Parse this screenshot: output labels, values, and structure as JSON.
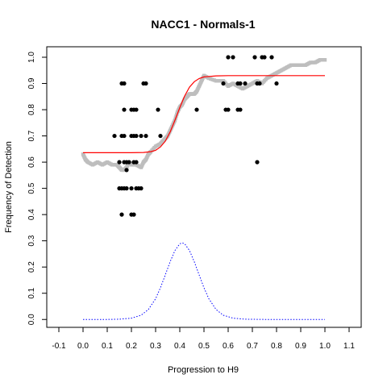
{
  "chart_data": {
    "type": "scatter",
    "title": "NACC1 - Normals-1",
    "xlabel": "Progression to H9",
    "ylabel": "Frequency of Detection",
    "xlim": [
      -0.15,
      1.15
    ],
    "ylim": [
      -0.03,
      1.04
    ],
    "x_ticks": [
      "-0.1",
      "0.0",
      "0.1",
      "0.2",
      "0.3",
      "0.4",
      "0.5",
      "0.6",
      "0.7",
      "0.8",
      "0.9",
      "1.0",
      "1.1"
    ],
    "y_ticks": [
      "0.0",
      "0.1",
      "0.2",
      "0.3",
      "0.4",
      "0.5",
      "0.6",
      "0.7",
      "0.8",
      "0.9",
      "1.0"
    ],
    "grid": false,
    "series": [
      {
        "kind": "points",
        "color": "#000000",
        "points": [
          [
            0.16,
            0.9
          ],
          [
            0.17,
            0.9
          ],
          [
            0.17,
            0.8
          ],
          [
            0.17,
            0.7
          ],
          [
            0.16,
            0.7
          ],
          [
            0.13,
            0.7
          ],
          [
            0.15,
            0.6
          ],
          [
            0.17,
            0.6
          ],
          [
            0.18,
            0.6
          ],
          [
            0.19,
            0.6
          ],
          [
            0.18,
            0.57
          ],
          [
            0.15,
            0.5
          ],
          [
            0.16,
            0.5
          ],
          [
            0.17,
            0.5
          ],
          [
            0.18,
            0.5
          ],
          [
            0.16,
            0.4
          ],
          [
            0.2,
            0.4
          ],
          [
            0.21,
            0.4
          ],
          [
            0.2,
            0.8
          ],
          [
            0.21,
            0.8
          ],
          [
            0.22,
            0.8
          ],
          [
            0.2,
            0.7
          ],
          [
            0.21,
            0.7
          ],
          [
            0.22,
            0.7
          ],
          [
            0.21,
            0.6
          ],
          [
            0.22,
            0.6
          ],
          [
            0.2,
            0.5
          ],
          [
            0.22,
            0.5
          ],
          [
            0.23,
            0.5
          ],
          [
            0.24,
            0.5
          ],
          [
            0.25,
            0.9
          ],
          [
            0.26,
            0.9
          ],
          [
            0.24,
            0.7
          ],
          [
            0.26,
            0.7
          ],
          [
            0.31,
            0.8
          ],
          [
            0.32,
            0.7
          ],
          [
            0.47,
            0.8
          ],
          [
            0.6,
            1.0
          ],
          [
            0.62,
            1.0
          ],
          [
            0.58,
            0.9
          ],
          [
            0.59,
            0.8
          ],
          [
            0.6,
            0.8
          ],
          [
            0.64,
            0.9
          ],
          [
            0.65,
            0.9
          ],
          [
            0.67,
            0.9
          ],
          [
            0.64,
            0.8
          ],
          [
            0.65,
            0.8
          ],
          [
            0.71,
            1.0
          ],
          [
            0.74,
            1.0
          ],
          [
            0.75,
            1.0
          ],
          [
            0.78,
            1.0
          ],
          [
            0.72,
            0.9
          ],
          [
            0.73,
            0.9
          ],
          [
            0.72,
            0.6
          ],
          [
            0.8,
            0.9
          ]
        ]
      },
      {
        "kind": "running-mean",
        "color": "#bebebe",
        "points": [
          [
            0.0,
            0.63
          ],
          [
            0.01,
            0.61
          ],
          [
            0.02,
            0.6
          ],
          [
            0.04,
            0.59
          ],
          [
            0.06,
            0.6
          ],
          [
            0.08,
            0.59
          ],
          [
            0.1,
            0.6
          ],
          [
            0.12,
            0.59
          ],
          [
            0.14,
            0.59
          ],
          [
            0.15,
            0.58
          ],
          [
            0.16,
            0.57
          ],
          [
            0.17,
            0.57
          ],
          [
            0.18,
            0.58
          ],
          [
            0.19,
            0.6
          ],
          [
            0.2,
            0.59
          ],
          [
            0.22,
            0.59
          ],
          [
            0.24,
            0.58
          ],
          [
            0.25,
            0.6
          ],
          [
            0.26,
            0.61
          ],
          [
            0.27,
            0.63
          ],
          [
            0.28,
            0.64
          ],
          [
            0.3,
            0.66
          ],
          [
            0.32,
            0.67
          ],
          [
            0.33,
            0.68
          ],
          [
            0.34,
            0.69
          ],
          [
            0.35,
            0.7
          ],
          [
            0.36,
            0.72
          ],
          [
            0.37,
            0.74
          ],
          [
            0.38,
            0.76
          ],
          [
            0.39,
            0.79
          ],
          [
            0.4,
            0.81
          ],
          [
            0.41,
            0.82
          ],
          [
            0.42,
            0.84
          ],
          [
            0.43,
            0.85
          ],
          [
            0.44,
            0.86
          ],
          [
            0.45,
            0.86
          ],
          [
            0.46,
            0.86
          ],
          [
            0.47,
            0.87
          ],
          [
            0.48,
            0.89
          ],
          [
            0.49,
            0.91
          ],
          [
            0.5,
            0.93
          ],
          [
            0.52,
            0.92
          ],
          [
            0.55,
            0.91
          ],
          [
            0.58,
            0.91
          ],
          [
            0.6,
            0.89
          ],
          [
            0.62,
            0.9
          ],
          [
            0.64,
            0.89
          ],
          [
            0.66,
            0.88
          ],
          [
            0.68,
            0.89
          ],
          [
            0.7,
            0.9
          ],
          [
            0.72,
            0.91
          ],
          [
            0.74,
            0.9
          ],
          [
            0.76,
            0.92
          ],
          [
            0.78,
            0.93
          ],
          [
            0.8,
            0.94
          ],
          [
            0.82,
            0.95
          ],
          [
            0.84,
            0.96
          ],
          [
            0.86,
            0.97
          ],
          [
            0.88,
            0.97
          ],
          [
            0.9,
            0.97
          ],
          [
            0.92,
            0.97
          ],
          [
            0.94,
            0.98
          ],
          [
            0.96,
            0.98
          ],
          [
            0.98,
            0.99
          ],
          [
            1.0,
            0.99
          ]
        ]
      },
      {
        "kind": "fit-curve",
        "color": "#ff0000",
        "points": [
          [
            0.0,
            0.636
          ],
          [
            0.05,
            0.636
          ],
          [
            0.1,
            0.636
          ],
          [
            0.15,
            0.636
          ],
          [
            0.2,
            0.636
          ],
          [
            0.25,
            0.637
          ],
          [
            0.28,
            0.64
          ],
          [
            0.3,
            0.645
          ],
          [
            0.32,
            0.658
          ],
          [
            0.34,
            0.68
          ],
          [
            0.36,
            0.715
          ],
          [
            0.38,
            0.76
          ],
          [
            0.4,
            0.808
          ],
          [
            0.42,
            0.852
          ],
          [
            0.44,
            0.886
          ],
          [
            0.46,
            0.907
          ],
          [
            0.48,
            0.919
          ],
          [
            0.5,
            0.925
          ],
          [
            0.55,
            0.929
          ],
          [
            0.6,
            0.93
          ],
          [
            0.7,
            0.93
          ],
          [
            0.8,
            0.93
          ],
          [
            0.9,
            0.93
          ],
          [
            1.0,
            0.93
          ]
        ]
      },
      {
        "kind": "density",
        "color": "#0000ff",
        "points": [
          [
            0.0,
            0.0
          ],
          [
            0.1,
            0.0
          ],
          [
            0.15,
            0.001
          ],
          [
            0.2,
            0.005
          ],
          [
            0.24,
            0.016
          ],
          [
            0.27,
            0.038
          ],
          [
            0.3,
            0.079
          ],
          [
            0.32,
            0.121
          ],
          [
            0.34,
            0.17
          ],
          [
            0.36,
            0.22
          ],
          [
            0.38,
            0.263
          ],
          [
            0.4,
            0.289
          ],
          [
            0.41,
            0.292
          ],
          [
            0.42,
            0.289
          ],
          [
            0.44,
            0.263
          ],
          [
            0.46,
            0.22
          ],
          [
            0.48,
            0.17
          ],
          [
            0.5,
            0.121
          ],
          [
            0.52,
            0.079
          ],
          [
            0.55,
            0.038
          ],
          [
            0.58,
            0.016
          ],
          [
            0.62,
            0.005
          ],
          [
            0.67,
            0.001
          ],
          [
            0.75,
            0.0
          ],
          [
            1.0,
            0.0
          ]
        ]
      }
    ]
  }
}
